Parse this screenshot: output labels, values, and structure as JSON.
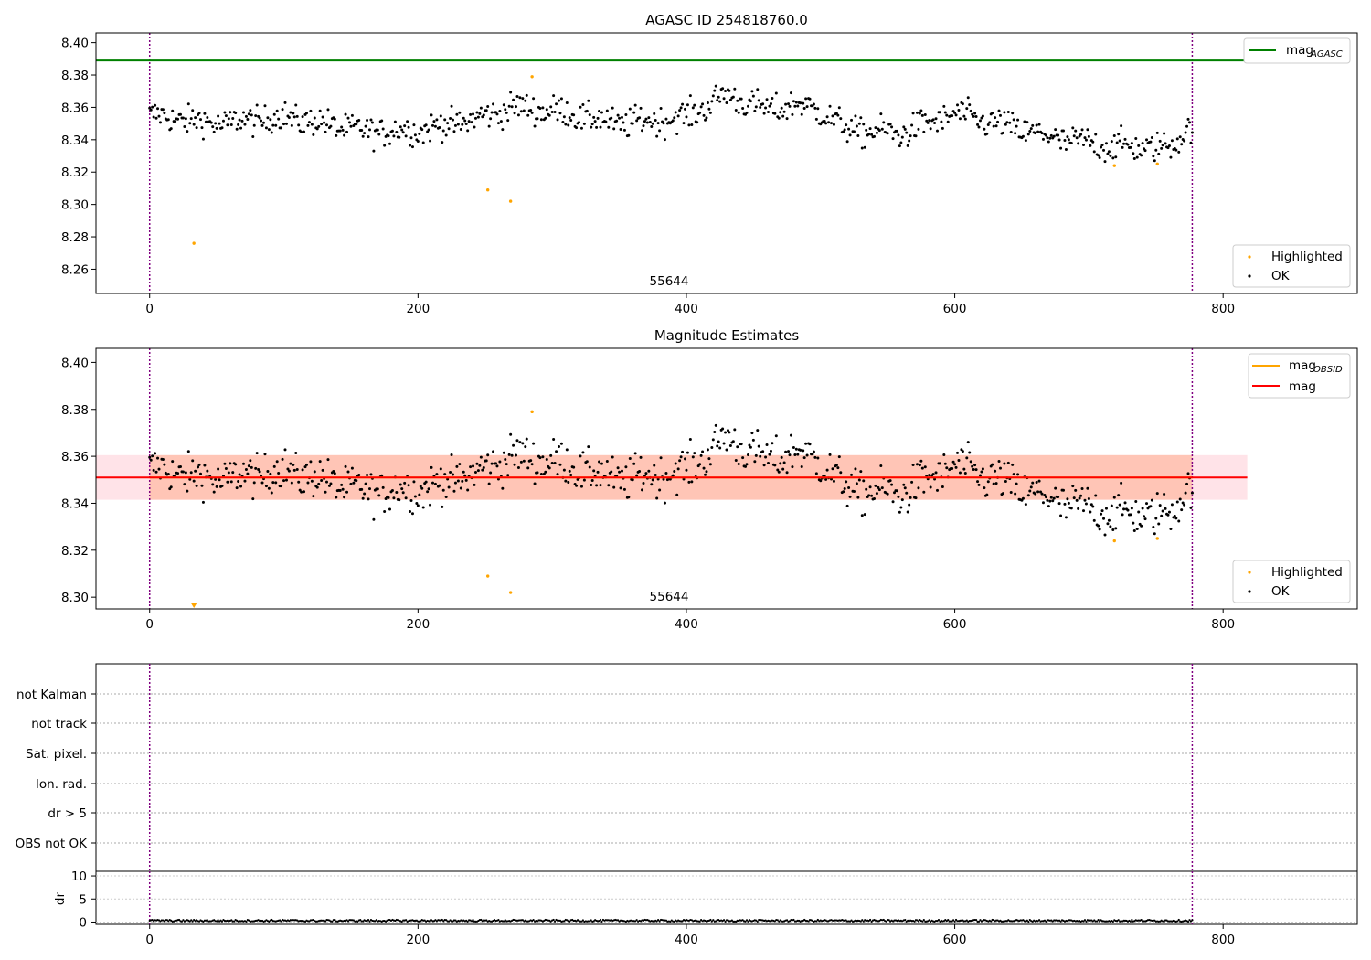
{
  "chart_data": [
    {
      "type": "scatter",
      "title": "AGASC ID 254818760.0",
      "annotation": "55644",
      "xlim": [
        -40,
        900
      ],
      "ylim": [
        8.245,
        8.406
      ],
      "xticks": [
        0,
        200,
        400,
        600,
        800
      ],
      "yticks": [
        8.26,
        8.28,
        8.3,
        8.32,
        8.34,
        8.36,
        8.38,
        8.4
      ],
      "vlines": [
        0,
        777
      ],
      "hline": {
        "name": "mag_AGASC",
        "value": 8.389,
        "xrange": [
          -40,
          818
        ],
        "color": "#008000"
      },
      "legend_lines": [
        {
          "label": "mag",
          "sub": "AGASC",
          "color": "#008000"
        }
      ],
      "legend_points": [
        {
          "label": "Highlighted",
          "color": "#ffa500"
        },
        {
          "label": "OK",
          "color": "#000000"
        }
      ],
      "series_ok_model": {
        "x_start": 0,
        "x_end": 777,
        "count": 778
      },
      "series": [
        {
          "name": "Highlighted",
          "x": [
            33,
            252,
            269,
            285,
            719,
            751
          ],
          "y": [
            8.276,
            8.309,
            8.302,
            8.379,
            8.324,
            8.325
          ]
        }
      ],
      "ok_anchors": {
        "x": [
          0,
          50,
          100,
          130,
          160,
          200,
          240,
          270,
          300,
          350,
          400,
          430,
          460,
          480,
          500,
          520,
          560,
          600,
          640,
          680,
          720,
          760,
          777
        ],
        "y": [
          8.355,
          8.35,
          8.354,
          8.35,
          8.345,
          8.346,
          8.352,
          8.36,
          8.358,
          8.35,
          8.354,
          8.368,
          8.358,
          8.362,
          8.358,
          8.346,
          8.344,
          8.356,
          8.348,
          8.34,
          8.336,
          8.335,
          8.35
        ]
      }
    },
    {
      "type": "scatter",
      "title": "Magnitude Estimates",
      "annotation": "55644",
      "xlim": [
        -40,
        900
      ],
      "ylim": [
        8.295,
        8.406
      ],
      "xticks": [
        0,
        200,
        400,
        600,
        800
      ],
      "yticks": [
        8.3,
        8.32,
        8.34,
        8.36,
        8.38,
        8.4
      ],
      "vlines": [
        0,
        777
      ],
      "mag": 8.351,
      "mag_band": [
        8.3415,
        8.3605
      ],
      "mag_obsid": 8.351,
      "obsid_band": [
        8.3415,
        8.3605
      ],
      "band_xrange": [
        -40,
        818
      ],
      "legend_lines": [
        {
          "label": "mag",
          "sub": "OBSID",
          "color": "#ffa500"
        },
        {
          "label": "mag",
          "sub": "",
          "color": "#ff0000"
        }
      ],
      "legend_points": [
        {
          "label": "Highlighted",
          "color": "#ffa500"
        },
        {
          "label": "OK",
          "color": "#000000"
        }
      ],
      "highlighted_offscale_x": 33
    },
    {
      "type": "scatter",
      "flags": [
        "not Kalman",
        "not track",
        "Sat. pixel.",
        "Ion. rad.",
        "dr > 5",
        "OBS not OK"
      ],
      "ylabel": "dr",
      "dr_yticks": [
        0,
        5,
        10
      ],
      "xlim": [
        -40,
        900
      ],
      "xticks": [
        0,
        200,
        400,
        600,
        800
      ],
      "vlines": [
        0,
        777
      ],
      "dr_series": {
        "name": "dr",
        "x_start": 0,
        "x_end": 777,
        "level": 0.3
      }
    }
  ],
  "colors": {
    "ok": "#000000",
    "highlighted": "#ffa500",
    "vline": "#800080",
    "agasc_line": "#008000",
    "mag_line": "#ff0000",
    "obsid_line": "#ffa500",
    "mag_band": "#ffc0cb",
    "obsid_band": "#ffa07a"
  }
}
